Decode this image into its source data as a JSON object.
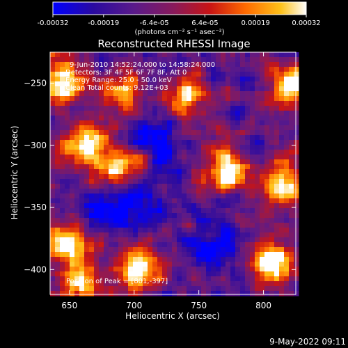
{
  "colorbar": {
    "ticks": [
      "-0.00032",
      "-0.00019",
      "-6.4e-05",
      "6.4e-05",
      "0.00019",
      "0.00032"
    ],
    "unit_label": "(photons cm⁻² s⁻¹ asec⁻²)",
    "range": [
      -0.00032,
      0.00032
    ],
    "colors": [
      "#0000ff",
      "#2a0aa0",
      "#5a1a8a",
      "#8a1a5a",
      "#c81414",
      "#ff6a00",
      "#ffc21a",
      "#ffffff"
    ]
  },
  "chart_data": {
    "type": "heatmap",
    "title": "Reconstructed RHESSI Image",
    "xlabel": "Heliocentric X (arcsec)",
    "ylabel": "Heliocentric Y (arcsec)",
    "xlim": [
      635,
      825
    ],
    "ylim": [
      -420,
      -225
    ],
    "xticks": [
      650,
      700,
      750,
      800
    ],
    "yticks": [
      -250,
      -300,
      -350,
      -400
    ],
    "xtick_labels": [
      "650",
      "700",
      "750",
      "800"
    ],
    "ytick_labels": [
      "−250",
      "−300",
      "−350",
      "−400"
    ],
    "annotations": [
      "9-Jun-2010 14:52:24.000 to 14:58:24.000",
      "Detectors: 3F 4F 5F 6F 7F 8F, Att 0",
      "Energy Range: 25.0 - 50.0 keV",
      "Clean    Total counts: 9.12E+03"
    ],
    "peak_label": "Position of Peak = [801,-397]",
    "peak": [
      801,
      -397
    ],
    "bright_regions": [
      {
        "x": 645,
        "y": -250,
        "level": 0.95
      },
      {
        "x": 660,
        "y": -300,
        "level": 0.85
      },
      {
        "x": 690,
        "y": -320,
        "level": 0.9
      },
      {
        "x": 705,
        "y": -400,
        "level": 0.9
      },
      {
        "x": 690,
        "y": -260,
        "level": 0.7
      },
      {
        "x": 770,
        "y": -320,
        "level": 0.95
      },
      {
        "x": 740,
        "y": -260,
        "level": 0.7
      },
      {
        "x": 805,
        "y": -395,
        "level": 1.0
      },
      {
        "x": 820,
        "y": -250,
        "level": 0.85
      },
      {
        "x": 815,
        "y": -330,
        "level": 0.8
      },
      {
        "x": 650,
        "y": -380,
        "level": 0.75
      },
      {
        "x": 660,
        "y": -410,
        "level": 0.7
      }
    ],
    "dim_regions": [
      {
        "x": 715,
        "y": -290,
        "level": 0.1
      },
      {
        "x": 700,
        "y": -340,
        "level": 0.12
      },
      {
        "x": 760,
        "y": -380,
        "level": 0.15
      },
      {
        "x": 680,
        "y": -350,
        "level": 0.15
      }
    ]
  },
  "footer_date": "9-May-2022 09:11"
}
